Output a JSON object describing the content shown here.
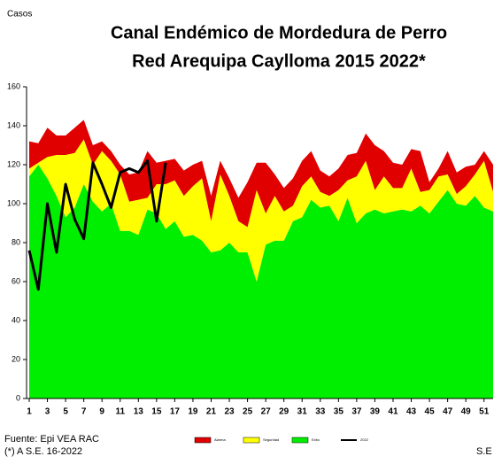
{
  "chart_data": {
    "type": "stacked-area-line",
    "y_label": "Casos",
    "title": "Canal Endémico de Mordedura de Perro",
    "subtitle": "Red Arequipa Caylloma 2015 2022*",
    "x_label": "S.E",
    "source": "Fuente: Epi VEA RAC",
    "note": "(*) A S.E. 16-2022",
    "x": [
      1,
      2,
      3,
      4,
      5,
      6,
      7,
      8,
      9,
      10,
      11,
      12,
      13,
      14,
      15,
      16,
      17,
      18,
      19,
      20,
      21,
      22,
      23,
      24,
      25,
      26,
      27,
      28,
      29,
      30,
      31,
      32,
      33,
      34,
      35,
      36,
      37,
      38,
      39,
      40,
      41,
      42,
      43,
      44,
      45,
      46,
      47,
      48,
      49,
      50,
      51,
      52
    ],
    "xlim": [
      1,
      52
    ],
    "xticks": [
      1,
      3,
      5,
      7,
      9,
      11,
      13,
      15,
      17,
      19,
      21,
      23,
      25,
      27,
      29,
      31,
      33,
      35,
      37,
      39,
      41,
      43,
      45,
      47,
      49,
      51
    ],
    "ylim": [
      0,
      160
    ],
    "yticks": [
      0,
      20,
      40,
      60,
      80,
      100,
      120,
      140,
      160
    ],
    "series": [
      {
        "name": "Exito",
        "color": "#00ee00",
        "stack": true,
        "values": [
          114,
          120,
          113,
          104,
          93,
          98,
          110,
          101,
          96,
          100,
          86,
          86,
          84,
          97,
          95,
          87,
          91,
          83,
          84,
          81,
          75,
          76,
          80,
          75,
          75,
          60,
          79,
          81,
          81,
          91,
          93,
          102,
          98,
          99,
          91,
          103,
          90,
          95,
          97,
          95,
          96,
          97,
          96,
          99,
          95,
          101,
          107,
          100,
          99,
          104,
          98,
          96
        ]
      },
      {
        "name": "Seguridad",
        "color": "#ffff00",
        "stack": true,
        "values": [
          4,
          1,
          11,
          21,
          32,
          28,
          23,
          19,
          31,
          22,
          29,
          15,
          18,
          6,
          15,
          23,
          21,
          21,
          25,
          32,
          16,
          39,
          24,
          16,
          13,
          47,
          16,
          23,
          15,
          8,
          16,
          12,
          8,
          5,
          16,
          9,
          24,
          27,
          10,
          19,
          12,
          11,
          22,
          7,
          12,
          13,
          8,
          5,
          10,
          11,
          24,
          10
        ]
      },
      {
        "name": "Alarma",
        "color": "#e00000",
        "stack": true,
        "values": [
          14,
          10,
          15,
          10,
          10,
          13,
          10,
          10,
          5,
          5,
          5,
          14,
          14,
          24,
          11,
          12,
          11,
          13,
          11,
          9,
          13,
          7,
          9,
          12,
          23,
          14,
          26,
          11,
          12,
          14,
          13,
          13,
          11,
          10,
          11,
          13,
          12,
          14,
          23,
          13,
          13,
          12,
          10,
          21,
          4,
          4,
          12,
          11,
          10,
          5,
          5,
          14
        ]
      },
      {
        "name": "2022",
        "color": "#000000",
        "stack": false,
        "values": [
          76,
          56,
          100,
          75,
          110,
          92,
          82,
          121,
          110,
          98,
          116,
          118,
          116,
          122,
          91,
          121,
          null,
          null,
          null,
          null,
          null,
          null,
          null,
          null,
          null,
          null,
          null,
          null,
          null,
          null,
          null,
          null,
          null,
          null,
          null,
          null,
          null,
          null,
          null,
          null,
          null,
          null,
          null,
          null,
          null,
          null,
          null,
          null,
          null,
          null,
          null,
          null
        ]
      }
    ],
    "legend_order": [
      2,
      1,
      0,
      3
    ]
  }
}
